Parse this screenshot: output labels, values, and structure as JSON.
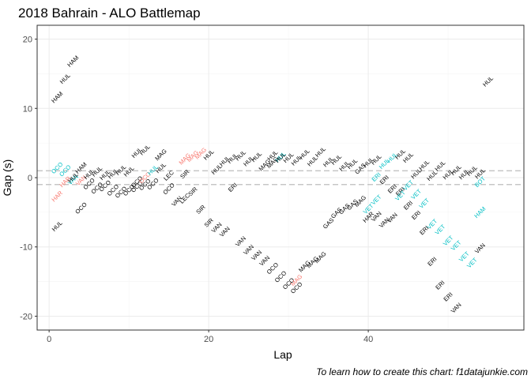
{
  "chart_data": {
    "type": "scatter",
    "title": "2018 Bahrain - ALO Battlemap",
    "xlabel": "Lap",
    "ylabel": "Gap (s)",
    "caption": "To learn how to create this chart: f1datajunkie.com",
    "xlim": [
      -1.5,
      59.5
    ],
    "ylim": [
      -22,
      22
    ],
    "x_ticks": [
      0,
      20,
      40
    ],
    "y_ticks": [
      -20,
      -10,
      0,
      10,
      20
    ],
    "reference_lines": [
      -1,
      1
    ],
    "grid": true,
    "legend": "none",
    "colors": {
      "ahead": "#000000",
      "lapping_red": "#F8766D",
      "teal": "#00BFC4",
      "reference": "#bdbdbd",
      "grid_major": "#ebebeb",
      "grid_minor": "#f5f5f5",
      "frame": "#333333"
    },
    "points": [
      {
        "lap": 1,
        "gap": 11.6,
        "driver": "HAM",
        "color": "black"
      },
      {
        "lap": 2,
        "gap": 14.3,
        "driver": "HUL",
        "color": "black"
      },
      {
        "lap": 3,
        "gap": 16.8,
        "driver": "HAM",
        "color": "black"
      },
      {
        "lap": 1,
        "gap": -7.0,
        "driver": "HUL",
        "color": "black"
      },
      {
        "lap": 1,
        "gap": 1.4,
        "driver": "OCO",
        "color": "teal"
      },
      {
        "lap": 2,
        "gap": 1.0,
        "driver": "OCO",
        "color": "teal"
      },
      {
        "lap": 1,
        "gap": -2.7,
        "driver": "HAR",
        "color": "red"
      },
      {
        "lap": 2,
        "gap": -0.6,
        "driver": "HAR",
        "color": "red"
      },
      {
        "lap": 3,
        "gap": -0.3,
        "driver": "VAN",
        "color": "teal"
      },
      {
        "lap": 3,
        "gap": 0.0,
        "driver": "HUL",
        "color": "black"
      },
      {
        "lap": 4,
        "gap": 1.4,
        "driver": "HAM",
        "color": "black"
      },
      {
        "lap": 4,
        "gap": -0.4,
        "driver": "VAN",
        "color": "red"
      },
      {
        "lap": 4,
        "gap": -4.4,
        "driver": "OCO",
        "color": "black"
      },
      {
        "lap": 5,
        "gap": 0.5,
        "driver": "HUL",
        "color": "black"
      },
      {
        "lap": 5,
        "gap": -0.9,
        "driver": "OCO",
        "color": "black"
      },
      {
        "lap": 6,
        "gap": 0.9,
        "driver": "HUL",
        "color": "black"
      },
      {
        "lap": 6,
        "gap": -1.5,
        "driver": "OCO",
        "color": "black"
      },
      {
        "lap": 7,
        "gap": 0.4,
        "driver": "HUL",
        "color": "black"
      },
      {
        "lap": 7,
        "gap": -1.2,
        "driver": "OCO",
        "color": "black"
      },
      {
        "lap": 8,
        "gap": 0.6,
        "driver": "HUL",
        "color": "black"
      },
      {
        "lap": 8,
        "gap": -1.8,
        "driver": "OCO",
        "color": "black"
      },
      {
        "lap": 9,
        "gap": 1.1,
        "driver": "HUL",
        "color": "black"
      },
      {
        "lap": 9,
        "gap": -2.1,
        "driver": "OCO",
        "color": "black"
      },
      {
        "lap": 10,
        "gap": 0.9,
        "driver": "HUL",
        "color": "black"
      },
      {
        "lap": 10,
        "gap": -1.8,
        "driver": "OCO",
        "color": "black"
      },
      {
        "lap": 11,
        "gap": 3.6,
        "driver": "HUL",
        "color": "black"
      },
      {
        "lap": 11,
        "gap": -0.6,
        "driver": "OCO",
        "color": "black"
      },
      {
        "lap": 11,
        "gap": -1.3,
        "driver": "OCO",
        "color": "black"
      },
      {
        "lap": 12,
        "gap": 4.0,
        "driver": "HUL",
        "color": "black"
      },
      {
        "lap": 12,
        "gap": 0.0,
        "driver": "OCO",
        "color": "red"
      },
      {
        "lap": 12,
        "gap": -1.0,
        "driver": "OCO",
        "color": "black"
      },
      {
        "lap": 13,
        "gap": 1.1,
        "driver": "HUL",
        "color": "teal"
      },
      {
        "lap": 13,
        "gap": -0.9,
        "driver": "OCO",
        "color": "black"
      },
      {
        "lap": 14,
        "gap": 3.3,
        "driver": "MAG",
        "color": "black"
      },
      {
        "lap": 14,
        "gap": 1.4,
        "driver": "HUL",
        "color": "black"
      },
      {
        "lap": 15,
        "gap": 0.3,
        "driver": "LEC",
        "color": "black"
      },
      {
        "lap": 15,
        "gap": -1.6,
        "driver": "OCO",
        "color": "black"
      },
      {
        "lap": 16,
        "gap": -3.4,
        "driver": "VAN",
        "color": "black"
      },
      {
        "lap": 17,
        "gap": 2.7,
        "driver": "MAG",
        "color": "red"
      },
      {
        "lap": 17,
        "gap": 0.5,
        "driver": "SIR",
        "color": "black"
      },
      {
        "lap": 17,
        "gap": -3.0,
        "driver": "LEC",
        "color": "black"
      },
      {
        "lap": 18,
        "gap": 3.1,
        "driver": "MAG",
        "color": "red"
      },
      {
        "lap": 18,
        "gap": -2.0,
        "driver": "SIR",
        "color": "black"
      },
      {
        "lap": 19,
        "gap": 3.5,
        "driver": "MAG",
        "color": "red"
      },
      {
        "lap": 19,
        "gap": -4.6,
        "driver": "SIR",
        "color": "black"
      },
      {
        "lap": 20,
        "gap": 3.3,
        "driver": "HUL",
        "color": "black"
      },
      {
        "lap": 20,
        "gap": -6.5,
        "driver": "SIR",
        "color": "black"
      },
      {
        "lap": 21,
        "gap": 1.2,
        "driver": "HUL",
        "color": "black"
      },
      {
        "lap": 21,
        "gap": -7.2,
        "driver": "VAN",
        "color": "black"
      },
      {
        "lap": 22,
        "gap": 2.4,
        "driver": "HUL",
        "color": "black"
      },
      {
        "lap": 22,
        "gap": -7.8,
        "driver": "VAN",
        "color": "black"
      },
      {
        "lap": 23,
        "gap": 2.8,
        "driver": "HUL",
        "color": "black"
      },
      {
        "lap": 23,
        "gap": -1.4,
        "driver": "ERI",
        "color": "black"
      },
      {
        "lap": 24,
        "gap": 3.2,
        "driver": "HUL",
        "color": "black"
      },
      {
        "lap": 24,
        "gap": -9.2,
        "driver": "VAN",
        "color": "black"
      },
      {
        "lap": 25,
        "gap": 2.4,
        "driver": "HUL",
        "color": "black"
      },
      {
        "lap": 25,
        "gap": -10.4,
        "driver": "VAN",
        "color": "black"
      },
      {
        "lap": 26,
        "gap": 3.0,
        "driver": "HUL",
        "color": "black"
      },
      {
        "lap": 26,
        "gap": -11.2,
        "driver": "VAN",
        "color": "black"
      },
      {
        "lap": 27,
        "gap": 1.8,
        "driver": "MAG",
        "color": "black"
      },
      {
        "lap": 27,
        "gap": -12.0,
        "driver": "VAN",
        "color": "black"
      },
      {
        "lap": 28,
        "gap": 3.2,
        "driver": "HUL",
        "color": "black"
      },
      {
        "lap": 28,
        "gap": 2.2,
        "driver": "MAG",
        "color": "black"
      },
      {
        "lap": 28,
        "gap": -13.1,
        "driver": "OCO",
        "color": "black"
      },
      {
        "lap": 29,
        "gap": 3.0,
        "driver": "HUL",
        "color": "teal"
      },
      {
        "lap": 29,
        "gap": 2.9,
        "driver": "HUL",
        "color": "black"
      },
      {
        "lap": 29,
        "gap": -14.3,
        "driver": "OCO",
        "color": "black"
      },
      {
        "lap": 30,
        "gap": 2.9,
        "driver": "HUL",
        "color": "black"
      },
      {
        "lap": 30,
        "gap": -15.3,
        "driver": "OCO",
        "color": "black"
      },
      {
        "lap": 31,
        "gap": 2.5,
        "driver": "HUL",
        "color": "black"
      },
      {
        "lap": 31,
        "gap": -14.8,
        "driver": "MAG",
        "color": "red"
      },
      {
        "lap": 31,
        "gap": -15.9,
        "driver": "OCO",
        "color": "black"
      },
      {
        "lap": 32,
        "gap": 3.4,
        "driver": "HUL",
        "color": "black"
      },
      {
        "lap": 32,
        "gap": -12.8,
        "driver": "MAG",
        "color": "black"
      },
      {
        "lap": 33,
        "gap": 2.4,
        "driver": "HUL",
        "color": "black"
      },
      {
        "lap": 33,
        "gap": -12.2,
        "driver": "MAG",
        "color": "black"
      },
      {
        "lap": 34,
        "gap": -11.5,
        "driver": "MAG",
        "color": "black"
      },
      {
        "lap": 34,
        "gap": 3.7,
        "driver": "HUL",
        "color": "black"
      },
      {
        "lap": 35,
        "gap": 2.3,
        "driver": "HUL",
        "color": "black"
      },
      {
        "lap": 35,
        "gap": -6.6,
        "driver": "GAS",
        "color": "black"
      },
      {
        "lap": 36,
        "gap": 2.6,
        "driver": "HUL",
        "color": "black"
      },
      {
        "lap": 36,
        "gap": -5.1,
        "driver": "GAS",
        "color": "black"
      },
      {
        "lap": 37,
        "gap": 1.7,
        "driver": "HUL",
        "color": "black"
      },
      {
        "lap": 37,
        "gap": -4.5,
        "driver": "GAS",
        "color": "black"
      },
      {
        "lap": 38,
        "gap": 2.0,
        "driver": "HUL",
        "color": "black"
      },
      {
        "lap": 38,
        "gap": -3.9,
        "driver": "GAS",
        "color": "black"
      },
      {
        "lap": 39,
        "gap": 1.3,
        "driver": "GAS",
        "color": "black"
      },
      {
        "lap": 39,
        "gap": -3.4,
        "driver": "MAG",
        "color": "black"
      },
      {
        "lap": 40,
        "gap": 2.2,
        "driver": "HUL",
        "color": "black"
      },
      {
        "lap": 40,
        "gap": -4.5,
        "driver": "VET",
        "color": "teal"
      },
      {
        "lap": 40,
        "gap": -5.7,
        "driver": "HAR",
        "color": "black"
      },
      {
        "lap": 41,
        "gap": 2.6,
        "driver": "HUL",
        "color": "black"
      },
      {
        "lap": 41,
        "gap": 0.1,
        "driver": "ERI",
        "color": "teal"
      },
      {
        "lap": 41,
        "gap": -3.2,
        "driver": "VET",
        "color": "teal"
      },
      {
        "lap": 41,
        "gap": -5.6,
        "driver": "VAN",
        "color": "black"
      },
      {
        "lap": 42,
        "gap": 2.0,
        "driver": "HUL",
        "color": "teal"
      },
      {
        "lap": 42,
        "gap": -0.3,
        "driver": "ERI",
        "color": "black"
      },
      {
        "lap": 42,
        "gap": -6.5,
        "driver": "VAN",
        "color": "black"
      },
      {
        "lap": 43,
        "gap": 2.9,
        "driver": "HUL",
        "color": "teal"
      },
      {
        "lap": 43,
        "gap": -1.6,
        "driver": "ERI",
        "color": "black"
      },
      {
        "lap": 43,
        "gap": -5.8,
        "driver": "VAN",
        "color": "black"
      },
      {
        "lap": 44,
        "gap": 3.4,
        "driver": "HUL",
        "color": "black"
      },
      {
        "lap": 44,
        "gap": -2.0,
        "driver": "ERI",
        "color": "black"
      },
      {
        "lap": 44,
        "gap": -2.6,
        "driver": "VET",
        "color": "teal"
      },
      {
        "lap": 45,
        "gap": 2.9,
        "driver": "HUL",
        "color": "black"
      },
      {
        "lap": 45,
        "gap": -1.1,
        "driver": "VET",
        "color": "teal"
      },
      {
        "lap": 45,
        "gap": -4.0,
        "driver": "ERI",
        "color": "black"
      },
      {
        "lap": 46,
        "gap": 0.6,
        "driver": "HUL",
        "color": "black"
      },
      {
        "lap": 46,
        "gap": -2.4,
        "driver": "VET",
        "color": "teal"
      },
      {
        "lap": 46,
        "gap": -5.4,
        "driver": "ERI",
        "color": "black"
      },
      {
        "lap": 47,
        "gap": 1.8,
        "driver": "HUL",
        "color": "black"
      },
      {
        "lap": 47,
        "gap": -3.7,
        "driver": "VET",
        "color": "teal"
      },
      {
        "lap": 47,
        "gap": -7.6,
        "driver": "ERI",
        "color": "black"
      },
      {
        "lap": 48,
        "gap": 0.3,
        "driver": "HUL",
        "color": "black"
      },
      {
        "lap": 48,
        "gap": -6.7,
        "driver": "VET",
        "color": "teal"
      },
      {
        "lap": 48,
        "gap": -12.1,
        "driver": "ERI",
        "color": "black"
      },
      {
        "lap": 49,
        "gap": 1.7,
        "driver": "HUL",
        "color": "black"
      },
      {
        "lap": 49,
        "gap": -7.5,
        "driver": "VET",
        "color": "teal"
      },
      {
        "lap": 49,
        "gap": -15.5,
        "driver": "ERI",
        "color": "black"
      },
      {
        "lap": 50,
        "gap": 0.5,
        "driver": "HUL",
        "color": "black"
      },
      {
        "lap": 50,
        "gap": -9.1,
        "driver": "VET",
        "color": "teal"
      },
      {
        "lap": 50,
        "gap": -17.2,
        "driver": "ERI",
        "color": "black"
      },
      {
        "lap": 51,
        "gap": 1.1,
        "driver": "HUL",
        "color": "black"
      },
      {
        "lap": 51,
        "gap": -9.8,
        "driver": "VET",
        "color": "teal"
      },
      {
        "lap": 51,
        "gap": -18.8,
        "driver": "VAN",
        "color": "black"
      },
      {
        "lap": 52,
        "gap": 0.5,
        "driver": "HUL",
        "color": "black"
      },
      {
        "lap": 52,
        "gap": -11.4,
        "driver": "VET",
        "color": "teal"
      },
      {
        "lap": 53,
        "gap": 1.0,
        "driver": "HUL",
        "color": "black"
      },
      {
        "lap": 53,
        "gap": -12.3,
        "driver": "VET",
        "color": "teal"
      },
      {
        "lap": 54,
        "gap": 0.6,
        "driver": "HUL",
        "color": "black"
      },
      {
        "lap": 54,
        "gap": -0.6,
        "driver": "BOT",
        "color": "teal"
      },
      {
        "lap": 54,
        "gap": -5.0,
        "driver": "HAM",
        "color": "teal"
      },
      {
        "lap": 54,
        "gap": -10.2,
        "driver": "VAN",
        "color": "black"
      },
      {
        "lap": 55,
        "gap": 13.9,
        "driver": "HUL",
        "color": "black"
      }
    ]
  }
}
